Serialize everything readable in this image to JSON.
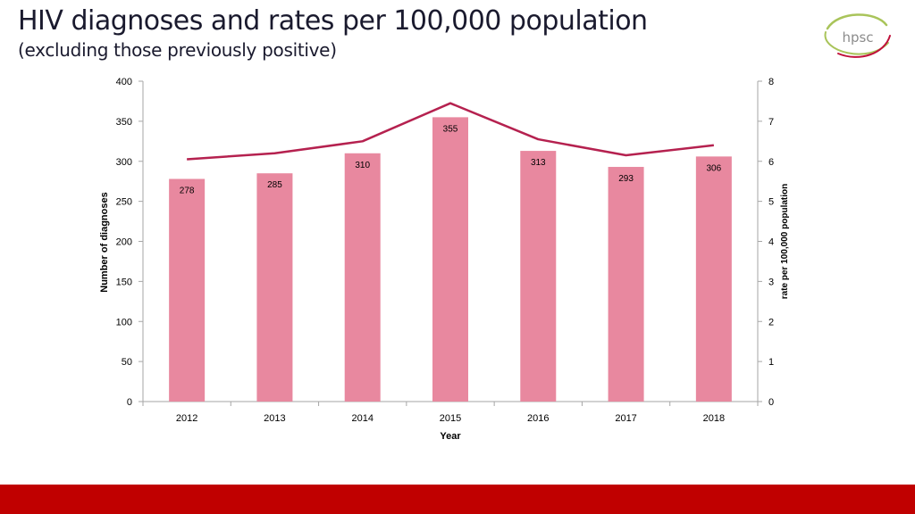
{
  "header": {
    "title": "HIV diagnoses and rates per 100,000 population",
    "subtitle": "(excluding those previously positive)"
  },
  "logo": {
    "text": "hpsc",
    "icon": "hpsc-logo-icon"
  },
  "colors": {
    "bar": "#e8889f",
    "line": "#b5214f",
    "axis": "#a6a6a6",
    "footer": "#c00000",
    "logo_text": "#8c8c8c",
    "logo_green": "#a9c45a",
    "logo_red": "#c0103a"
  },
  "chart_data": {
    "type": "bar",
    "categories": [
      "2012",
      "2013",
      "2014",
      "2015",
      "2016",
      "2017",
      "2018"
    ],
    "series": [
      {
        "name": "Number of diagnoses",
        "type": "bar",
        "axis": "left",
        "values": [
          278,
          285,
          310,
          355,
          313,
          293,
          306
        ]
      },
      {
        "name": "rate per 100,000 population",
        "type": "line",
        "axis": "right",
        "values": [
          6.05,
          6.2,
          6.5,
          7.45,
          6.55,
          6.15,
          6.4
        ]
      }
    ],
    "data_labels": [
      "278",
      "285",
      "310",
      "355",
      "313",
      "293",
      "306"
    ],
    "xlabel": "Year",
    "ylabel": "Number of diagnoses",
    "y2label": "rate per 100,000 population",
    "ylim": [
      0,
      400
    ],
    "y2lim": [
      0,
      8
    ],
    "yticks": [
      "0",
      "50",
      "100",
      "150",
      "200",
      "250",
      "300",
      "350",
      "400"
    ],
    "y2ticks": [
      "0",
      "1",
      "2",
      "3",
      "4",
      "5",
      "6",
      "7",
      "8"
    ],
    "grid": false
  }
}
